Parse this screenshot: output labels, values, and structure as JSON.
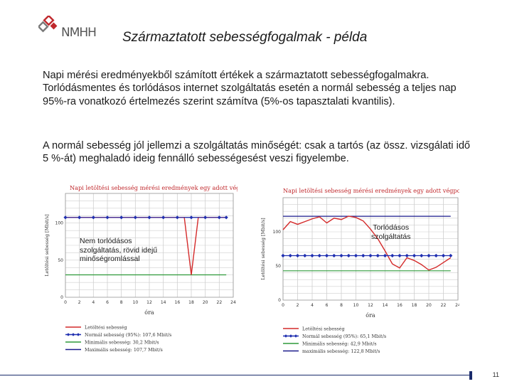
{
  "header": {
    "logo_text": "NMHH",
    "title": "Származtatott sebességfogalmak - példa"
  },
  "body": {
    "paragraph1": "Napi mérési eredményekből számított értékek a származtatott sebességfogalmakra. Torlódásmentes és torlódásos internet szolgáltatás esetén a normál sebesség a teljes nap 95%-ra vonatkozó értelmezés szerint számítva (5%-os tapasztalati kvantilis).",
    "paragraph2": "A normál sebesség jól jellemzi a szolgáltatás minőségét: csak a tartós (az össz. vizsgálati idő 5 %-át) meghaladó ideig fennálló sebességesést veszi figyelembe."
  },
  "annotations": {
    "chart1": [
      "Nem torlódásos",
      "szolgáltatás, rövid idejű",
      "minőségromlással"
    ],
    "chart2": [
      "Torlódásos",
      "szolgáltatás"
    ]
  },
  "colors": {
    "download": "#d42a2a",
    "normal": "#1f2fb0",
    "minimum": "#2e9a3a",
    "maximum": "#1a1a8c",
    "title_red": "#c0282c",
    "grid": "#cfcfcf"
  },
  "chart_data": [
    {
      "type": "line",
      "title": "Napi letöltési sebesség mérési eredmények egy adott végponton",
      "xlabel": "óra",
      "ylabel": "Letöltési sebesség [Mbit/s]",
      "xlim": [
        0,
        24
      ],
      "ylim": [
        0,
        140
      ],
      "xticks": [
        0,
        2,
        4,
        6,
        8,
        10,
        12,
        14,
        16,
        18,
        20,
        22,
        24
      ],
      "yticks": [
        0,
        50,
        100
      ],
      "grid": true,
      "legend_position": "bottom",
      "series": [
        {
          "name": "Letöltési sebesség",
          "role": "download",
          "x": [
            0,
            2,
            4,
            6,
            8,
            10,
            12,
            14,
            16,
            17,
            18,
            19,
            20,
            22,
            23
          ],
          "y": [
            107.7,
            107.7,
            107.7,
            107.7,
            107.7,
            107.7,
            107.7,
            107.7,
            107.7,
            107.7,
            30.2,
            107.7,
            107.7,
            107.7,
            107.7
          ]
        },
        {
          "name": "Normál sebesség (95%): 107,6 Mbit/s",
          "role": "normal",
          "markers": true,
          "x": [
            0,
            2,
            4,
            6,
            8,
            10,
            12,
            14,
            16,
            18,
            20,
            22,
            23
          ],
          "y": [
            107.6,
            107.6,
            107.6,
            107.6,
            107.6,
            107.6,
            107.6,
            107.6,
            107.6,
            107.6,
            107.6,
            107.6,
            107.6
          ]
        },
        {
          "name": "Minimális sebesség: 30,2 Mbit/s",
          "role": "minimum",
          "x": [
            0,
            23
          ],
          "y": [
            30.2,
            30.2
          ]
        },
        {
          "name": "Maximális sebesség: 107,7 Mbit/s",
          "role": "maximum",
          "x": [
            0,
            23
          ],
          "y": [
            107.7,
            107.7
          ]
        }
      ]
    },
    {
      "type": "line",
      "title": "Napi letöltési sebesség mérési eredmények egy adott végponton",
      "xlabel": "óra",
      "ylabel": "Letöltési sebesség [Mbit/s]",
      "xlim": [
        0,
        24
      ],
      "ylim": [
        0,
        150
      ],
      "xticks": [
        0,
        2,
        4,
        6,
        8,
        10,
        12,
        14,
        16,
        18,
        20,
        22,
        24
      ],
      "yticks": [
        0,
        50,
        100
      ],
      "grid": true,
      "legend_position": "bottom",
      "series": [
        {
          "name": "Letöltési sebesség",
          "role": "download",
          "x": [
            0,
            1,
            2,
            3,
            4,
            5,
            6,
            7,
            8,
            9,
            10,
            11,
            12,
            13,
            14,
            15,
            16,
            17,
            18,
            19,
            20,
            21,
            22,
            23
          ],
          "y": [
            103,
            115,
            111,
            115,
            119,
            122,
            113,
            120,
            118,
            123,
            121,
            116,
            104,
            90,
            72,
            53,
            47,
            62,
            58,
            52,
            44,
            48,
            55,
            62
          ]
        },
        {
          "name": "Normál sebesség (95%): 65,1 Mbit/s",
          "role": "normal",
          "markers": true,
          "x": [
            0,
            1,
            2,
            3,
            4,
            5,
            6,
            7,
            8,
            9,
            10,
            11,
            12,
            13,
            14,
            15,
            16,
            17,
            18,
            19,
            20,
            21,
            22,
            23
          ],
          "y": [
            65.1,
            65.1,
            65.1,
            65.1,
            65.1,
            65.1,
            65.1,
            65.1,
            65.1,
            65.1,
            65.1,
            65.1,
            65.1,
            65.1,
            65.1,
            65.1,
            65.1,
            65.1,
            65.1,
            65.1,
            65.1,
            65.1,
            65.1,
            65.1
          ]
        },
        {
          "name": "Minimális sebesség: 42,9 Mbit/s",
          "role": "minimum",
          "x": [
            0,
            23
          ],
          "y": [
            42.9,
            42.9
          ]
        },
        {
          "name": "maximális sebesség: 122,8 Mbit/s",
          "role": "maximum",
          "x": [
            0,
            23
          ],
          "y": [
            122.8,
            122.8
          ]
        }
      ]
    }
  ],
  "footer": {
    "slide_number": "11"
  }
}
